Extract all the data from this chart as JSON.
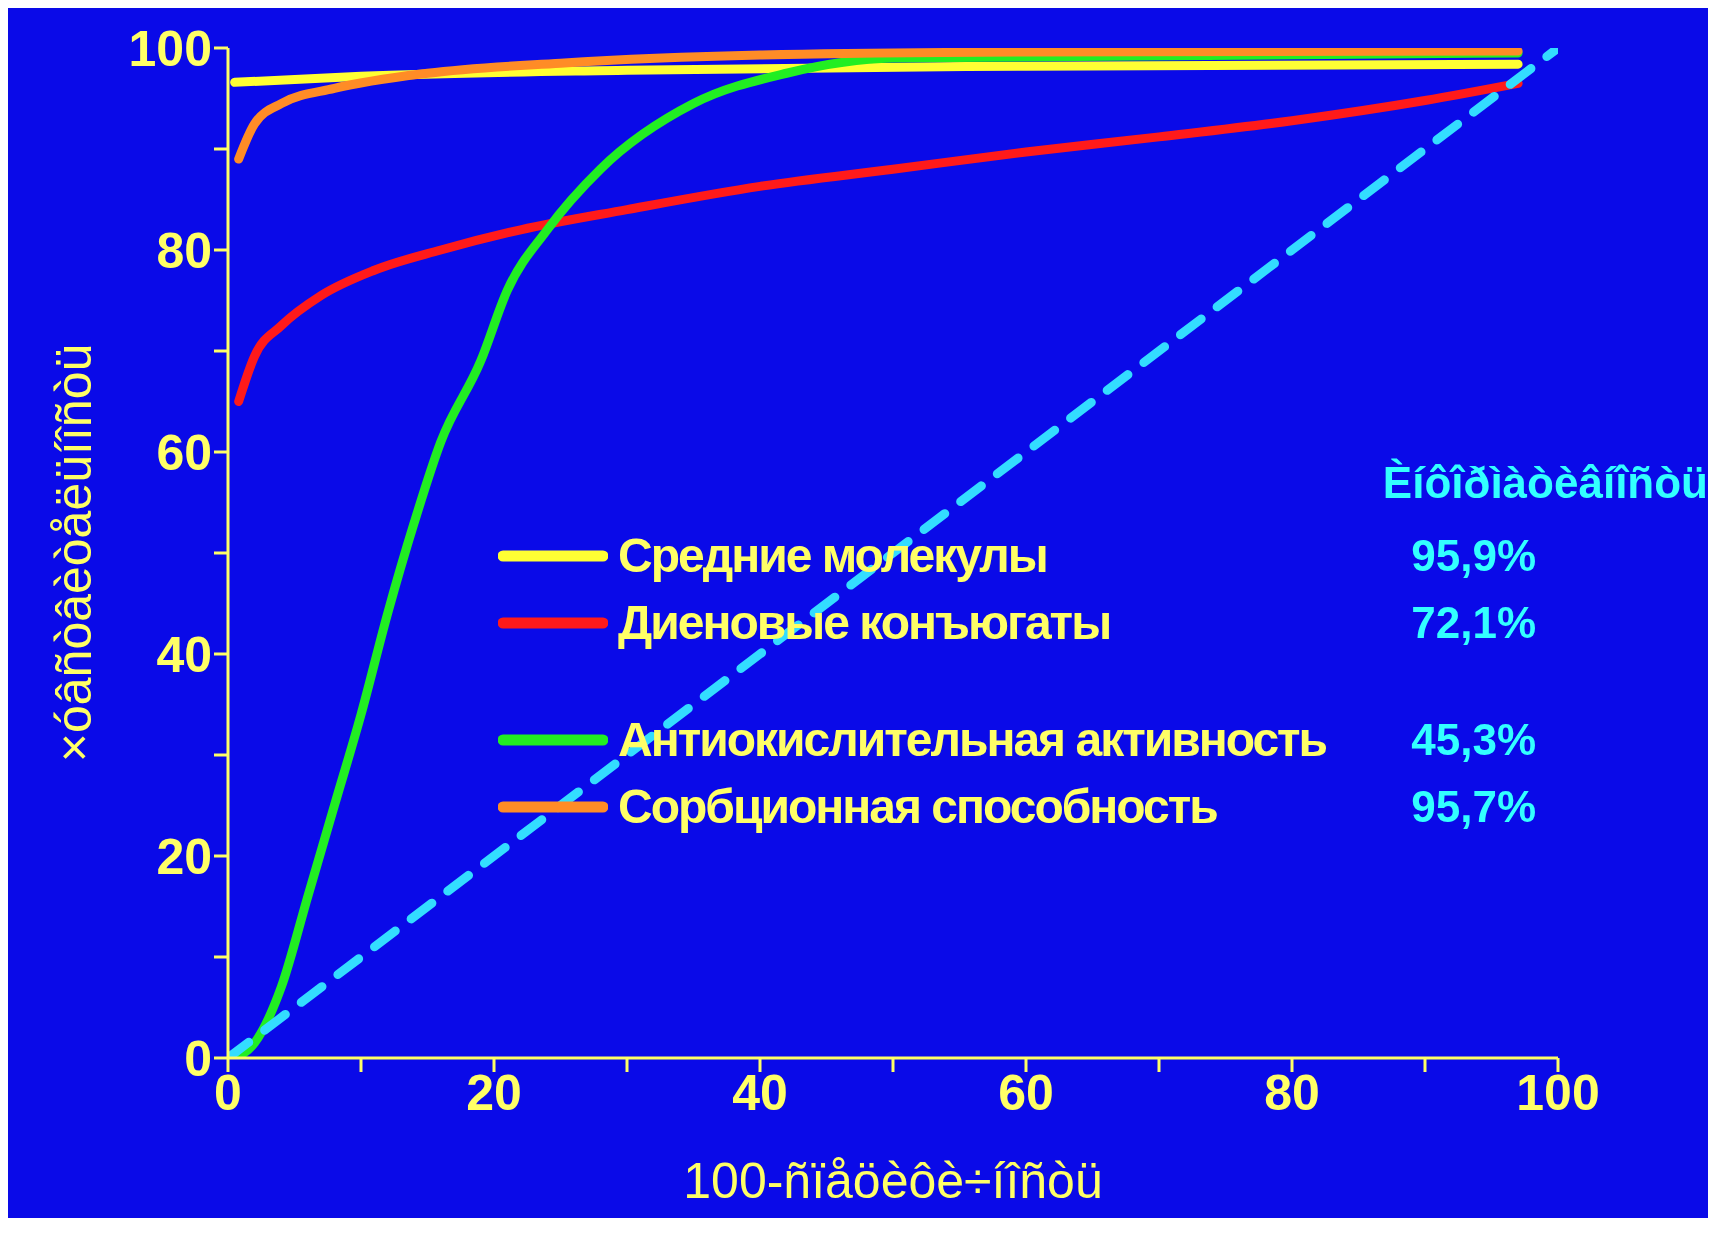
{
  "chart_data": {
    "type": "line",
    "xlabel": "100-ñïåöèôè÷íîñòü",
    "ylabel": "×óâñòâèòåëüíîñòü",
    "xlim": [
      0,
      100
    ],
    "ylim": [
      0,
      100
    ],
    "xticks": [
      0,
      {
        "value": 10,
        "label": null
      },
      20,
      {
        "value": 30,
        "label": null
      },
      40,
      {
        "value": 50,
        "label": null
      },
      60,
      {
        "value": 70,
        "label": null
      },
      80,
      {
        "value": 90,
        "label": null
      },
      100
    ],
    "yticks": [
      0,
      {
        "value": 10,
        "label": null
      },
      20,
      {
        "value": 30,
        "label": null
      },
      40,
      {
        "value": 50,
        "label": null
      },
      60,
      {
        "value": 70,
        "label": null
      },
      80,
      {
        "value": 90,
        "label": null
      },
      100
    ],
    "legend": "center",
    "marker": "none",
    "annotations": [
      "Èíôîðìàòèâíîñòü",
      "95,9%",
      "72,1%",
      "45,3%",
      "95,7%"
    ],
    "series": [
      {
        "name": "Средние молекулы",
        "color": "#ffff33",
        "x": [
          0.5,
          10,
          30,
          60,
          97
        ],
        "values": [
          96.6,
          97.2,
          97.8,
          98.2,
          98.4
        ]
      },
      {
        "name": "Диеновые конъюгаты",
        "color": "#ff1a1a",
        "x": [
          0.8,
          2,
          4,
          7,
          11,
          16,
          22,
          30,
          40,
          50,
          60,
          70,
          80,
          90,
          97
        ],
        "values": [
          65,
          69.5,
          72.5,
          75.5,
          78,
          80,
          82,
          84,
          86.3,
          88,
          89.7,
          91.2,
          92.8,
          94.8,
          96.5
        ]
      },
      {
        "name": "Антиокислительная активность",
        "color": "#22ee22",
        "x": [
          0.5,
          2,
          4,
          6,
          8,
          10,
          12,
          14,
          16,
          19,
          21,
          24,
          28,
          35,
          42,
          50,
          97
        ],
        "values": [
          0,
          1.5,
          7,
          16,
          25,
          34,
          44,
          53,
          61,
          69,
          76,
          82,
          88,
          94.5,
          97.5,
          99,
          99.5
        ]
      },
      {
        "name": "Сорбционная способность",
        "color": "#ff8c26",
        "x": [
          0.8,
          2,
          4,
          8,
          15,
          25,
          40,
          60,
          97
        ],
        "values": [
          89,
          92.5,
          94.5,
          96,
          97.5,
          98.5,
          99.3,
          99.6,
          99.7
        ]
      },
      {
        "color": "#33ddff",
        "line_style": "dashed",
        "x": [
          0,
          100
        ],
        "values": [
          0,
          100
        ]
      }
    ]
  }
}
